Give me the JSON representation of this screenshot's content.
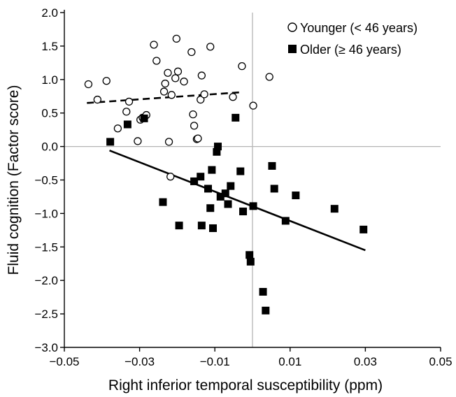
{
  "chart_data": {
    "type": "scatter",
    "xlabel": "Right inferior temporal susceptibility (ppm)",
    "ylabel": "Fluid cognition (Factor score)",
    "xlim": [
      -0.05,
      0.05
    ],
    "ylim": [
      -3.0,
      2.0
    ],
    "xticks": [
      -0.05,
      -0.03,
      -0.01,
      0.01,
      0.03,
      0.05
    ],
    "xtick_labels": [
      "−0.05",
      "−0.03",
      "−0.01",
      "0.01",
      "0.03",
      "0.05"
    ],
    "yticks": [
      2.0,
      1.5,
      1.0,
      0.5,
      0.0,
      -0.5,
      -1.0,
      -1.5,
      -2.0,
      -2.5,
      -3.0
    ],
    "ytick_labels": [
      "2.0",
      "1.5",
      "1.0",
      "0.5",
      "0.0",
      "−0.5",
      "−1.0",
      "−1.5",
      "−2.0",
      "−2.5",
      "−3.0"
    ],
    "reference_lines": {
      "x": 0.0,
      "y": 0.0,
      "color": "#b5b5b5"
    },
    "legend_position": "top-right",
    "series": [
      {
        "name": "Younger (< 46 years)",
        "marker": "open-circle",
        "color": "#000000",
        "trend": {
          "x": [
            -0.044,
            -0.003
          ],
          "y": [
            0.65,
            0.81
          ],
          "style": "dashed"
        },
        "x": [
          -0.0436,
          -0.0412,
          -0.0388,
          -0.0358,
          -0.0335,
          -0.0328,
          -0.0305,
          -0.0298,
          -0.0292,
          -0.0282,
          -0.0262,
          -0.0255,
          -0.0235,
          -0.0232,
          -0.0225,
          -0.0222,
          -0.0218,
          -0.0215,
          -0.0205,
          -0.0202,
          -0.0198,
          -0.0182,
          -0.0162,
          -0.0158,
          -0.0155,
          -0.0148,
          -0.0145,
          -0.0138,
          -0.0135,
          -0.0128,
          -0.0112,
          -0.0052,
          -0.0028,
          0.0002,
          0.0045
        ],
        "y": [
          0.93,
          0.7,
          0.98,
          0.27,
          0.52,
          0.67,
          0.08,
          0.4,
          0.43,
          0.47,
          1.52,
          1.28,
          0.82,
          0.94,
          1.1,
          0.07,
          -0.45,
          0.77,
          1.02,
          1.61,
          1.12,
          0.97,
          1.41,
          0.48,
          0.31,
          0.11,
          0.12,
          0.7,
          1.06,
          0.78,
          1.49,
          0.74,
          1.2,
          0.61,
          1.04
        ]
      },
      {
        "name": "Older (≥ 46 years)",
        "marker": "filled-square",
        "color": "#000000",
        "trend": {
          "x": [
            -0.038,
            0.03
          ],
          "y": [
            -0.06,
            -1.55
          ],
          "style": "solid"
        },
        "x": [
          -0.0378,
          -0.0332,
          -0.0288,
          -0.0238,
          -0.0195,
          -0.0155,
          -0.0138,
          -0.0135,
          -0.0118,
          -0.0112,
          -0.0108,
          -0.0105,
          -0.0095,
          -0.0092,
          -0.0085,
          -0.0072,
          -0.0065,
          -0.0058,
          -0.0045,
          -0.0032,
          -0.0025,
          -0.0008,
          -0.0005,
          0.0002,
          0.0028,
          0.0035,
          0.0052,
          0.0058,
          0.0088,
          0.0115,
          0.0218,
          0.0295
        ],
        "y": [
          0.07,
          0.33,
          0.42,
          -0.83,
          -1.18,
          -0.52,
          -0.45,
          -1.18,
          -0.63,
          -0.92,
          -0.35,
          -1.22,
          -0.08,
          0.0,
          -0.75,
          -0.7,
          -0.86,
          -0.59,
          0.43,
          -0.37,
          -0.97,
          -1.62,
          -1.72,
          -0.89,
          -2.17,
          -2.45,
          -0.29,
          -0.63,
          -1.11,
          -0.73,
          -0.93,
          -1.24
        ]
      }
    ]
  }
}
